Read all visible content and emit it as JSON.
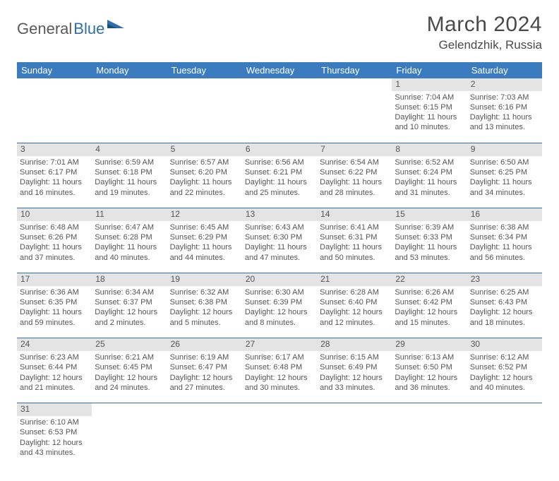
{
  "brand": {
    "part1": "General",
    "part2": "Blue"
  },
  "title": "March 2024",
  "location": "Gelendzhik, Russia",
  "colors": {
    "header_bg": "#3a7cbf",
    "header_text": "#ffffff",
    "daynum_bg": "#e4e4e4",
    "row_border": "#2f6fa8",
    "body_text": "#555555",
    "title_text": "#4a4a4a",
    "logo_gray": "#5a5a5a",
    "logo_blue": "#2f6fa8"
  },
  "weekdays": [
    "Sunday",
    "Monday",
    "Tuesday",
    "Wednesday",
    "Thursday",
    "Friday",
    "Saturday"
  ],
  "weeks": [
    [
      null,
      null,
      null,
      null,
      null,
      {
        "n": "1",
        "sr": "Sunrise: 7:04 AM",
        "ss": "Sunset: 6:15 PM",
        "d1": "Daylight: 11 hours",
        "d2": "and 10 minutes."
      },
      {
        "n": "2",
        "sr": "Sunrise: 7:03 AM",
        "ss": "Sunset: 6:16 PM",
        "d1": "Daylight: 11 hours",
        "d2": "and 13 minutes."
      }
    ],
    [
      {
        "n": "3",
        "sr": "Sunrise: 7:01 AM",
        "ss": "Sunset: 6:17 PM",
        "d1": "Daylight: 11 hours",
        "d2": "and 16 minutes."
      },
      {
        "n": "4",
        "sr": "Sunrise: 6:59 AM",
        "ss": "Sunset: 6:18 PM",
        "d1": "Daylight: 11 hours",
        "d2": "and 19 minutes."
      },
      {
        "n": "5",
        "sr": "Sunrise: 6:57 AM",
        "ss": "Sunset: 6:20 PM",
        "d1": "Daylight: 11 hours",
        "d2": "and 22 minutes."
      },
      {
        "n": "6",
        "sr": "Sunrise: 6:56 AM",
        "ss": "Sunset: 6:21 PM",
        "d1": "Daylight: 11 hours",
        "d2": "and 25 minutes."
      },
      {
        "n": "7",
        "sr": "Sunrise: 6:54 AM",
        "ss": "Sunset: 6:22 PM",
        "d1": "Daylight: 11 hours",
        "d2": "and 28 minutes."
      },
      {
        "n": "8",
        "sr": "Sunrise: 6:52 AM",
        "ss": "Sunset: 6:24 PM",
        "d1": "Daylight: 11 hours",
        "d2": "and 31 minutes."
      },
      {
        "n": "9",
        "sr": "Sunrise: 6:50 AM",
        "ss": "Sunset: 6:25 PM",
        "d1": "Daylight: 11 hours",
        "d2": "and 34 minutes."
      }
    ],
    [
      {
        "n": "10",
        "sr": "Sunrise: 6:48 AM",
        "ss": "Sunset: 6:26 PM",
        "d1": "Daylight: 11 hours",
        "d2": "and 37 minutes."
      },
      {
        "n": "11",
        "sr": "Sunrise: 6:47 AM",
        "ss": "Sunset: 6:28 PM",
        "d1": "Daylight: 11 hours",
        "d2": "and 40 minutes."
      },
      {
        "n": "12",
        "sr": "Sunrise: 6:45 AM",
        "ss": "Sunset: 6:29 PM",
        "d1": "Daylight: 11 hours",
        "d2": "and 44 minutes."
      },
      {
        "n": "13",
        "sr": "Sunrise: 6:43 AM",
        "ss": "Sunset: 6:30 PM",
        "d1": "Daylight: 11 hours",
        "d2": "and 47 minutes."
      },
      {
        "n": "14",
        "sr": "Sunrise: 6:41 AM",
        "ss": "Sunset: 6:31 PM",
        "d1": "Daylight: 11 hours",
        "d2": "and 50 minutes."
      },
      {
        "n": "15",
        "sr": "Sunrise: 6:39 AM",
        "ss": "Sunset: 6:33 PM",
        "d1": "Daylight: 11 hours",
        "d2": "and 53 minutes."
      },
      {
        "n": "16",
        "sr": "Sunrise: 6:38 AM",
        "ss": "Sunset: 6:34 PM",
        "d1": "Daylight: 11 hours",
        "d2": "and 56 minutes."
      }
    ],
    [
      {
        "n": "17",
        "sr": "Sunrise: 6:36 AM",
        "ss": "Sunset: 6:35 PM",
        "d1": "Daylight: 11 hours",
        "d2": "and 59 minutes."
      },
      {
        "n": "18",
        "sr": "Sunrise: 6:34 AM",
        "ss": "Sunset: 6:37 PM",
        "d1": "Daylight: 12 hours",
        "d2": "and 2 minutes."
      },
      {
        "n": "19",
        "sr": "Sunrise: 6:32 AM",
        "ss": "Sunset: 6:38 PM",
        "d1": "Daylight: 12 hours",
        "d2": "and 5 minutes."
      },
      {
        "n": "20",
        "sr": "Sunrise: 6:30 AM",
        "ss": "Sunset: 6:39 PM",
        "d1": "Daylight: 12 hours",
        "d2": "and 8 minutes."
      },
      {
        "n": "21",
        "sr": "Sunrise: 6:28 AM",
        "ss": "Sunset: 6:40 PM",
        "d1": "Daylight: 12 hours",
        "d2": "and 12 minutes."
      },
      {
        "n": "22",
        "sr": "Sunrise: 6:26 AM",
        "ss": "Sunset: 6:42 PM",
        "d1": "Daylight: 12 hours",
        "d2": "and 15 minutes."
      },
      {
        "n": "23",
        "sr": "Sunrise: 6:25 AM",
        "ss": "Sunset: 6:43 PM",
        "d1": "Daylight: 12 hours",
        "d2": "and 18 minutes."
      }
    ],
    [
      {
        "n": "24",
        "sr": "Sunrise: 6:23 AM",
        "ss": "Sunset: 6:44 PM",
        "d1": "Daylight: 12 hours",
        "d2": "and 21 minutes."
      },
      {
        "n": "25",
        "sr": "Sunrise: 6:21 AM",
        "ss": "Sunset: 6:45 PM",
        "d1": "Daylight: 12 hours",
        "d2": "and 24 minutes."
      },
      {
        "n": "26",
        "sr": "Sunrise: 6:19 AM",
        "ss": "Sunset: 6:47 PM",
        "d1": "Daylight: 12 hours",
        "d2": "and 27 minutes."
      },
      {
        "n": "27",
        "sr": "Sunrise: 6:17 AM",
        "ss": "Sunset: 6:48 PM",
        "d1": "Daylight: 12 hours",
        "d2": "and 30 minutes."
      },
      {
        "n": "28",
        "sr": "Sunrise: 6:15 AM",
        "ss": "Sunset: 6:49 PM",
        "d1": "Daylight: 12 hours",
        "d2": "and 33 minutes."
      },
      {
        "n": "29",
        "sr": "Sunrise: 6:13 AM",
        "ss": "Sunset: 6:50 PM",
        "d1": "Daylight: 12 hours",
        "d2": "and 36 minutes."
      },
      {
        "n": "30",
        "sr": "Sunrise: 6:12 AM",
        "ss": "Sunset: 6:52 PM",
        "d1": "Daylight: 12 hours",
        "d2": "and 40 minutes."
      }
    ],
    [
      {
        "n": "31",
        "sr": "Sunrise: 6:10 AM",
        "ss": "Sunset: 6:53 PM",
        "d1": "Daylight: 12 hours",
        "d2": "and 43 minutes."
      },
      null,
      null,
      null,
      null,
      null,
      null
    ]
  ]
}
